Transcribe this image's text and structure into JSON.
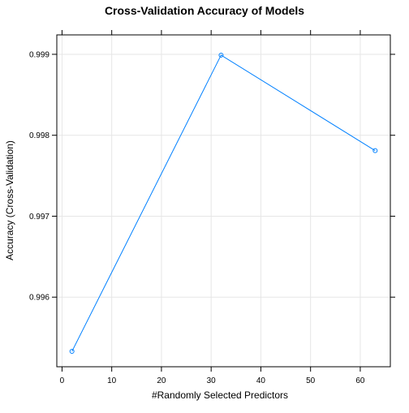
{
  "chart_data": {
    "type": "line",
    "title": "Cross-Validation Accuracy of Models",
    "xlabel": "#Randomly Selected Predictors",
    "ylabel": "Accuracy (Cross-Validation)",
    "xlim": [
      -1.05,
      66.05
    ],
    "ylim": [
      0.99514,
      0.99924
    ],
    "x_ticks": [
      0,
      10,
      20,
      30,
      40,
      50,
      60
    ],
    "y_ticks": [
      0.996,
      0.997,
      0.998,
      0.999
    ],
    "x_tick_labels": [
      "0",
      "10",
      "20",
      "30",
      "40",
      "50",
      "60"
    ],
    "y_tick_labels": [
      "0.996",
      "0.997",
      "0.998",
      "0.999"
    ],
    "grid": true,
    "series": [
      {
        "x": [
          2,
          32,
          63
        ],
        "y": [
          0.99533,
          0.99899,
          0.99781
        ],
        "color": "#0080ff",
        "marker": "open-circle"
      }
    ],
    "colors": {
      "line": "#0080ff",
      "grid": "#e6e6e6",
      "frame": "#000000"
    }
  }
}
